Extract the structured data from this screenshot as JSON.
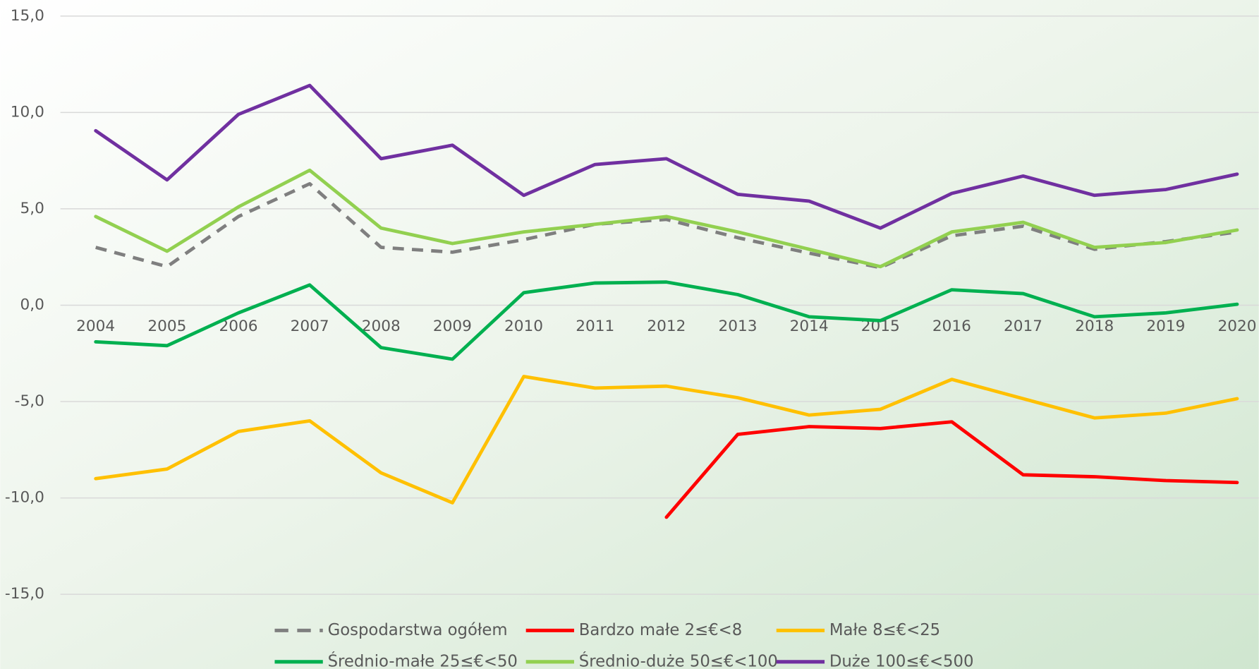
{
  "chart_data": {
    "type": "line",
    "categories": [
      "2004",
      "2005",
      "2006",
      "2007",
      "2008",
      "2009",
      "2010",
      "2011",
      "2012",
      "2013",
      "2014",
      "2015",
      "2016",
      "2017",
      "2018",
      "2019",
      "2020"
    ],
    "series": [
      {
        "name": "Gospodarstwa ogółem",
        "color": "#7f7f7f",
        "dashed": true,
        "values": [
          3.0,
          2.0,
          4.6,
          6.3,
          3.0,
          2.75,
          3.4,
          4.2,
          4.45,
          3.5,
          2.7,
          1.95,
          3.6,
          4.1,
          2.9,
          3.3,
          3.8
        ]
      },
      {
        "name": "Bardzo małe 2≤€<8",
        "color": "#ff0000",
        "values": [
          null,
          null,
          null,
          null,
          null,
          null,
          null,
          null,
          -11.0,
          -6.7,
          -6.3,
          -6.4,
          -6.05,
          -8.8,
          -8.9,
          -9.1,
          -9.2
        ]
      },
      {
        "name": "Małe 8≤€<25",
        "color": "#ffc000",
        "values": [
          -9.0,
          -8.5,
          -6.55,
          -6.0,
          -8.7,
          -10.25,
          -3.7,
          -4.3,
          -4.2,
          -4.8,
          -5.7,
          -5.4,
          -3.85,
          -4.85,
          -5.85,
          -5.6,
          -4.85
        ]
      },
      {
        "name": "Średnio-małe 25≤€<50",
        "color": "#00b050",
        "values": [
          -1.9,
          -2.1,
          -0.4,
          1.05,
          -2.2,
          -2.8,
          0.65,
          1.15,
          1.2,
          0.55,
          -0.6,
          -0.8,
          0.8,
          0.6,
          -0.6,
          -0.4,
          0.05
        ]
      },
      {
        "name": "Średnio-duże 50≤€<100",
        "color": "#92d050",
        "values": [
          4.6,
          2.8,
          5.1,
          7.0,
          4.0,
          3.2,
          3.8,
          4.2,
          4.6,
          3.8,
          2.9,
          2.0,
          3.8,
          4.3,
          3.0,
          3.25,
          3.9
        ]
      },
      {
        "name": "Duże 100≤€<500",
        "color": "#7030a0",
        "values": [
          9.05,
          6.5,
          9.9,
          11.4,
          7.6,
          8.3,
          5.7,
          7.3,
          7.6,
          5.75,
          5.4,
          4.0,
          5.8,
          6.7,
          5.7,
          6.0,
          6.8
        ]
      }
    ],
    "ylim": [
      -15,
      15
    ],
    "yticks": [
      {
        "value": 15,
        "label": "15,0"
      },
      {
        "value": 10,
        "label": "10,0"
      },
      {
        "value": 5,
        "label": "5,0"
      },
      {
        "value": 0,
        "label": "0,0"
      },
      {
        "value": -5,
        "label": "-5,0"
      },
      {
        "value": -10,
        "label": "-10,0"
      },
      {
        "value": -15,
        "label": "-15,0"
      }
    ],
    "grid": true
  }
}
